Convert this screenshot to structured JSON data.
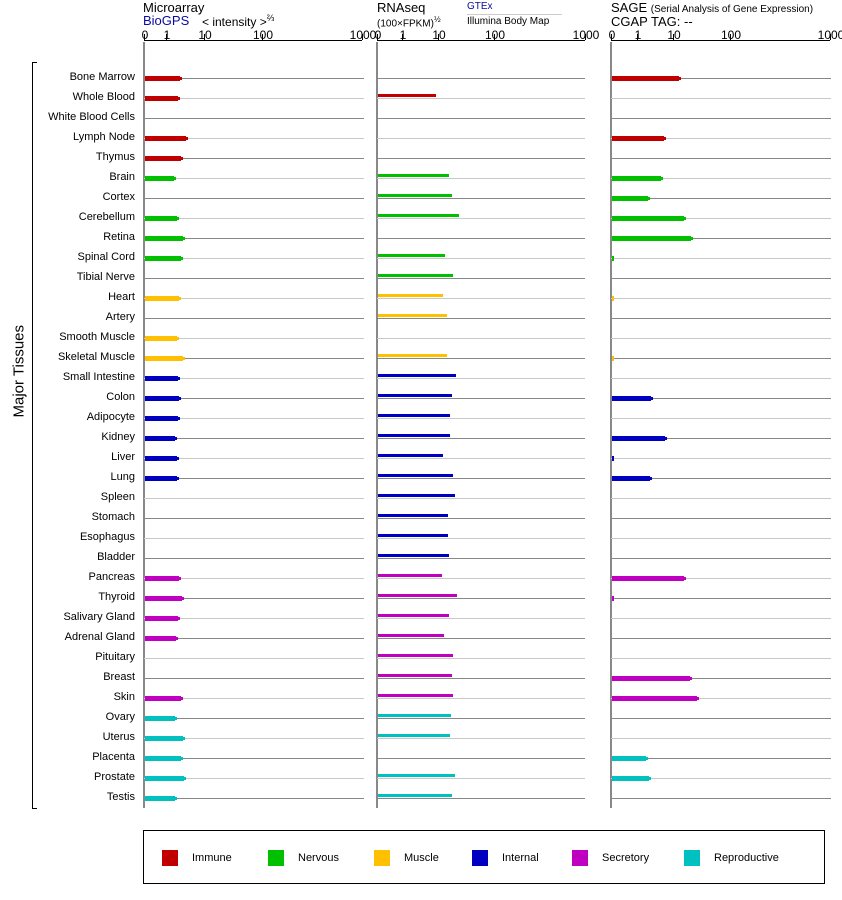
{
  "headers": {
    "microarray": {
      "title": "Microarray",
      "source": "BioGPS",
      "unit": "< intensity >",
      "unit_exp": "⅔"
    },
    "rnaseq": {
      "title": "RNAseq",
      "unit": "(100×FPKM)",
      "unit_exp": "½",
      "source1": "GTEx",
      "source2": "Illumina Body Map"
    },
    "sage": {
      "title": "SAGE",
      "subtitle": "(Serial Analysis of Gene Expression)",
      "tag_label": "CGAP TAG:",
      "tag_value": "--"
    }
  },
  "y_axis_label": "Major Tissues",
  "legend": [
    {
      "label": "Immune",
      "color": "#c00000"
    },
    {
      "label": "Nervous",
      "color": "#00c000"
    },
    {
      "label": "Muscle",
      "color": "#ffc000"
    },
    {
      "label": "Internal",
      "color": "#0000c0"
    },
    {
      "label": "Secretory",
      "color": "#c000c0"
    },
    {
      "label": "Reproductive",
      "color": "#00c0c0"
    }
  ],
  "chart_data": {
    "type": "bar",
    "orientation": "horizontal",
    "panels": [
      {
        "key": "microarray",
        "ticks": [
          "0",
          "1",
          "10",
          "100",
          "1000"
        ],
        "xlim": [
          0,
          1000
        ]
      },
      {
        "key": "rnaseq",
        "ticks": [
          "0",
          "1",
          "10",
          "100",
          "1000"
        ],
        "xlim": [
          0,
          1000
        ]
      },
      {
        "key": "sage",
        "ticks": [
          "0",
          "1",
          "10",
          "100",
          "1000"
        ],
        "xlim": [
          0,
          1000
        ]
      }
    ],
    "categories": [
      "Bone Marrow",
      "Whole Blood",
      "White Blood Cells",
      "Lymph Node",
      "Thymus",
      "Brain",
      "Cortex",
      "Cerebellum",
      "Retina",
      "Spinal Cord",
      "Tibial Nerve",
      "Heart",
      "Artery",
      "Smooth Muscle",
      "Skeletal Muscle",
      "Small Intestine",
      "Colon",
      "Adipocyte",
      "Kidney",
      "Liver",
      "Lung",
      "Spleen",
      "Stomach",
      "Esophagus",
      "Bladder",
      "Pancreas",
      "Thyroid",
      "Salivary Gland",
      "Adrenal Gland",
      "Pituitary",
      "Breast",
      "Skin",
      "Ovary",
      "Uterus",
      "Placenta",
      "Prostate",
      "Testis"
    ],
    "groups": [
      0,
      0,
      0,
      0,
      0,
      1,
      1,
      1,
      1,
      1,
      1,
      2,
      2,
      2,
      2,
      3,
      3,
      3,
      3,
      3,
      3,
      3,
      3,
      3,
      3,
      4,
      4,
      4,
      4,
      4,
      4,
      4,
      5,
      5,
      5,
      5,
      5
    ],
    "series": [
      {
        "name": "microarray",
        "values": [
          4.3,
          3.8,
          null,
          5.7,
          4.6,
          2.9,
          null,
          3.6,
          5.0,
          4.6,
          null,
          4.1,
          null,
          3.6,
          5.0,
          3.8,
          4.1,
          3.8,
          3.1,
          3.6,
          3.6,
          null,
          null,
          null,
          null,
          4.1,
          4.8,
          3.8,
          3.4,
          null,
          null,
          4.6,
          3.1,
          5.0,
          4.6,
          5.3,
          3.1
        ]
      },
      {
        "name": "rnaseq",
        "values": [
          null,
          9.5,
          null,
          null,
          null,
          27.7,
          32.5,
          43.8,
          null,
          21.3,
          34.1,
          18,
          24.5,
          null,
          24.5,
          38.9,
          32.5,
          29.3,
          29.3,
          18,
          34.1,
          37.3,
          26.1,
          26.1,
          27.7,
          16.4,
          40.5,
          27.7,
          19.6,
          34.1,
          32.5,
          34.1,
          30.9,
          29.3,
          null,
          37.3,
          32.5
        ]
      },
      {
        "name": "sage",
        "values": [
          19.5,
          null,
          null,
          7.75,
          null,
          7,
          3.75,
          27.4,
          38.4,
          0.1,
          null,
          0.1,
          null,
          null,
          0.1,
          null,
          4.5,
          null,
          8,
          0.1,
          4.25,
          null,
          null,
          null,
          null,
          27.4,
          0.1,
          null,
          null,
          null,
          36.8,
          47.9,
          null,
          null,
          3.25,
          4,
          null
        ]
      }
    ]
  }
}
